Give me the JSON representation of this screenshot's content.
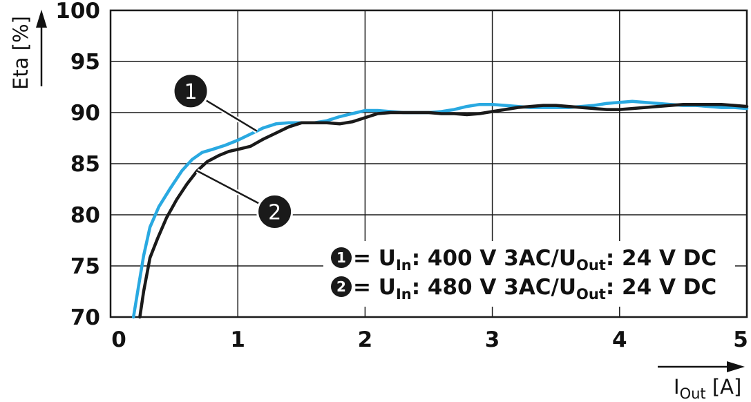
{
  "chart_data": {
    "type": "line",
    "xlabel_main": "I",
    "xlabel_sub": "Out",
    "xlabel_unit": " [A]",
    "ylabel": "Eta [%]",
    "xlim": [
      0,
      5
    ],
    "ylim": [
      70,
      100
    ],
    "x_ticks": [
      0,
      1,
      2,
      3,
      4,
      5
    ],
    "y_ticks": [
      70,
      75,
      80,
      85,
      90,
      95,
      100
    ],
    "grid": true,
    "colors": {
      "series1": "#29a9e1",
      "series2": "#1a1a1a",
      "grid": "#1a1a1a"
    },
    "series": [
      {
        "marker": "1",
        "x": [
          0.18,
          0.22,
          0.26,
          0.31,
          0.38,
          0.47,
          0.56,
          0.64,
          0.72,
          0.8,
          0.9,
          1.0,
          1.1,
          1.2,
          1.3,
          1.4,
          1.5,
          1.6,
          1.7,
          1.8,
          1.9,
          2.0,
          2.1,
          2.2,
          2.3,
          2.4,
          2.5,
          2.6,
          2.7,
          2.8,
          2.9,
          3.0,
          3.1,
          3.2,
          3.3,
          3.4,
          3.5,
          3.6,
          3.7,
          3.8,
          3.9,
          4.0,
          4.1,
          4.2,
          4.3,
          4.4,
          4.5,
          4.6,
          4.7,
          4.8,
          4.9,
          5.0
        ],
        "values": [
          70.0,
          73.0,
          76.0,
          78.8,
          80.8,
          82.6,
          84.3,
          85.4,
          86.1,
          86.4,
          86.8,
          87.3,
          87.9,
          88.5,
          88.9,
          89.0,
          89.0,
          89.0,
          89.2,
          89.6,
          89.9,
          90.2,
          90.2,
          90.1,
          90.0,
          90.0,
          90.0,
          90.1,
          90.3,
          90.6,
          90.8,
          90.8,
          90.7,
          90.6,
          90.5,
          90.5,
          90.5,
          90.5,
          90.6,
          90.7,
          90.9,
          91.0,
          91.1,
          91.0,
          90.9,
          90.8,
          90.7,
          90.7,
          90.6,
          90.5,
          90.5,
          90.4
        ]
      },
      {
        "marker": "2",
        "x": [
          0.23,
          0.26,
          0.31,
          0.37,
          0.44,
          0.52,
          0.6,
          0.68,
          0.76,
          0.85,
          0.93,
          1.0,
          1.1,
          1.2,
          1.3,
          1.4,
          1.5,
          1.6,
          1.7,
          1.8,
          1.9,
          2.0,
          2.1,
          2.2,
          2.3,
          2.4,
          2.5,
          2.6,
          2.7,
          2.8,
          2.9,
          3.0,
          3.1,
          3.2,
          3.3,
          3.4,
          3.5,
          3.6,
          3.7,
          3.8,
          3.9,
          4.0,
          4.1,
          4.2,
          4.3,
          4.4,
          4.5,
          4.6,
          4.7,
          4.8,
          4.9,
          5.0
        ],
        "values": [
          70.0,
          72.5,
          75.8,
          77.7,
          79.7,
          81.5,
          83.0,
          84.3,
          85.2,
          85.8,
          86.2,
          86.4,
          86.7,
          87.4,
          88.0,
          88.6,
          89.0,
          89.0,
          89.0,
          88.9,
          89.1,
          89.5,
          89.9,
          90.0,
          90.0,
          90.0,
          90.0,
          89.9,
          89.9,
          89.8,
          89.9,
          90.1,
          90.3,
          90.5,
          90.6,
          90.7,
          90.7,
          90.6,
          90.5,
          90.4,
          90.3,
          90.3,
          90.4,
          90.5,
          90.6,
          90.7,
          90.8,
          90.8,
          90.8,
          90.8,
          90.7,
          90.6
        ]
      }
    ],
    "callouts": [
      {
        "marker": "1",
        "anchor": [
          1.15,
          88.2
        ],
        "label": [
          0.63,
          92.1
        ]
      },
      {
        "marker": "2",
        "anchor": [
          0.68,
          84.3
        ],
        "label": [
          1.29,
          80.3
        ]
      }
    ],
    "legend": {
      "placement": "bottom-right",
      "entries": [
        {
          "marker": "1",
          "prefix": " = U",
          "sub1": "In",
          "mid": ": 400 V 3AC/U",
          "sub2": "Out",
          "suffix": ": 24 V DC"
        },
        {
          "marker": "2",
          "prefix": " = U",
          "sub1": "In",
          "mid": ": 480 V 3AC/U",
          "sub2": "Out",
          "suffix": ": 24 V DC"
        }
      ]
    }
  }
}
